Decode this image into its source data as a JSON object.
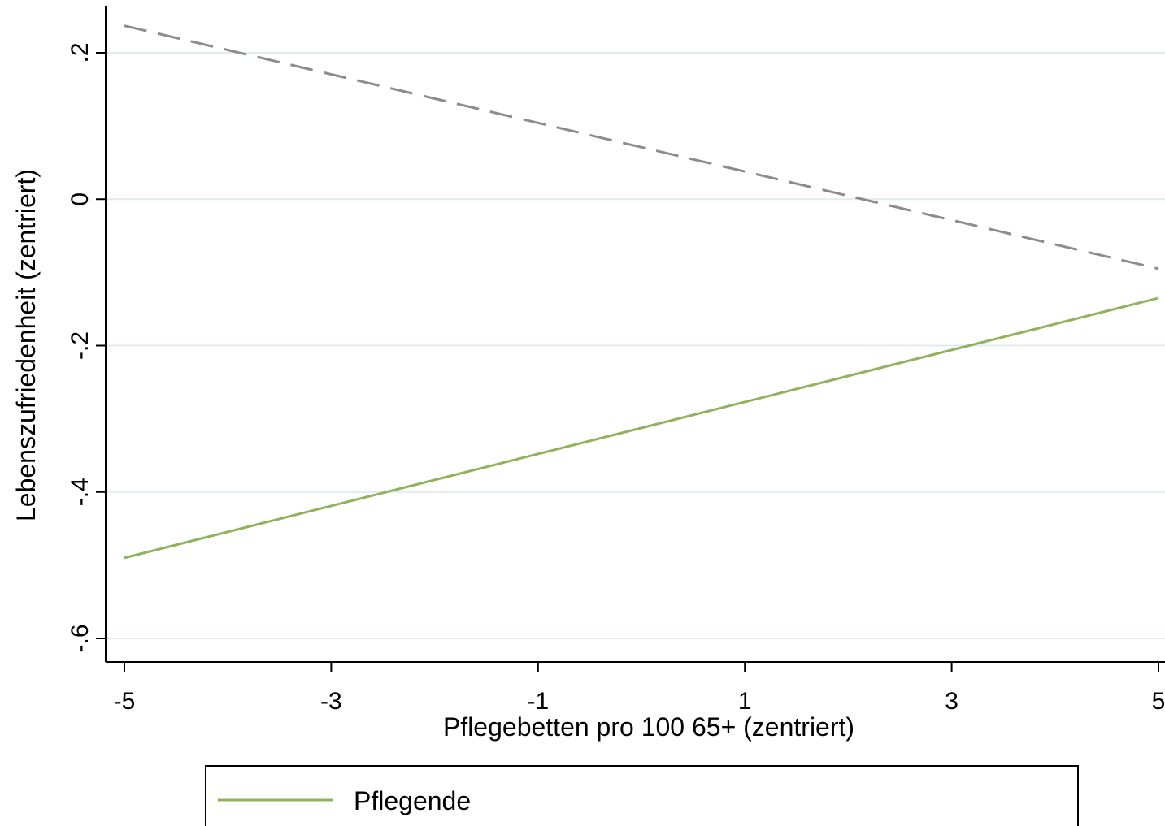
{
  "chart_data": {
    "type": "line",
    "xlabel": "Pflegebetten pro 100 65+ (zentriert)",
    "ylabel": "Lebenszufriedenheit (zentriert)",
    "xlim": [
      -5,
      5
    ],
    "ylim": [
      -0.6,
      0.2
    ],
    "x_ticks": [
      -5,
      -3,
      -1,
      1,
      3,
      5
    ],
    "x_tick_labels": [
      "-5",
      "-3",
      "-1",
      "1",
      "3",
      "5"
    ],
    "y_ticks": [
      -0.6,
      -0.4,
      -0.2,
      0,
      0.2
    ],
    "y_tick_labels": [
      "-.6",
      "-.4",
      "-.2",
      "0",
      ".2"
    ],
    "grid": "horizontal",
    "legend_position": "bottom",
    "series": [
      {
        "name": "Pflegende",
        "x": [
          -5,
          5
        ],
        "y": [
          -0.49,
          -0.135
        ],
        "color": "#8fb35a",
        "style": "solid",
        "in_legend": true
      },
      {
        "x": [
          -5,
          5
        ],
        "y": [
          0.237,
          -0.095
        ],
        "color": "#8c8c8c",
        "style": "dashed",
        "in_legend": false
      }
    ]
  }
}
